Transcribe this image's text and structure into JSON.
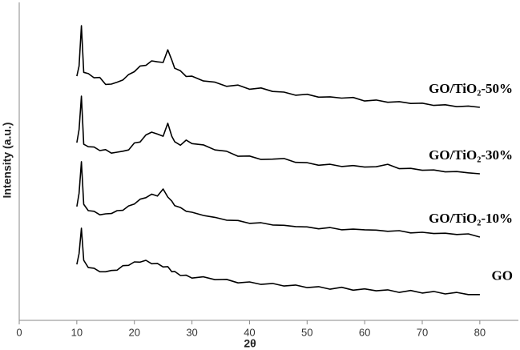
{
  "chart_data": {
    "type": "line",
    "xlabel": "2θ",
    "ylabel": "Intensity (a.u.)",
    "xlim": [
      0,
      86.7
    ],
    "ylim": [
      0,
      100
    ],
    "xticks": [
      0,
      10,
      20,
      30,
      40,
      50,
      60,
      70,
      80
    ],
    "x": [
      10,
      10.4,
      10.8,
      11.2,
      12,
      13,
      14,
      15,
      16,
      17,
      18,
      19,
      20,
      21,
      22,
      23,
      24,
      25,
      25.8,
      26.5,
      27,
      28,
      29,
      30,
      32,
      34,
      36,
      38,
      40,
      42,
      44,
      46,
      48,
      50,
      52,
      54,
      56,
      58,
      60,
      62,
      64,
      66,
      68,
      70,
      72,
      74,
      76,
      78,
      80
    ],
    "series": [
      {
        "name": "GO/TiO₂-50%",
        "color": "#000000",
        "values": [
          76.8,
          80,
          92.7,
          78,
          77.6,
          76.3,
          76.4,
          74.2,
          74.3,
          74.9,
          75.6,
          77.3,
          78.2,
          80,
          80.2,
          81.6,
          81.3,
          81.1,
          85.1,
          81.9,
          79.3,
          78.5,
          76.7,
          76.8,
          75.3,
          74.9,
          73.6,
          74,
          72.7,
          73.1,
          72,
          71.8,
          70.8,
          71.1,
          70.2,
          70.3,
          69.9,
          70.1,
          69,
          69.3,
          68.6,
          68.8,
          68.2,
          68.3,
          67.6,
          67.8,
          67.2,
          67.4,
          67
        ]
      },
      {
        "name": "GO/TiO₂-30%",
        "color": "#000000",
        "values": [
          55.9,
          60,
          70.5,
          55.4,
          54.6,
          54.5,
          53.4,
          53.7,
          52.6,
          52.9,
          53.2,
          53.6,
          55.8,
          56.1,
          58.3,
          59.2,
          58.6,
          57.9,
          62,
          57.9,
          56.2,
          55.1,
          56.7,
          55.6,
          55.2,
          53.6,
          53.2,
          51.6,
          51.7,
          50.6,
          50.7,
          50.9,
          49.7,
          49.6,
          48.8,
          49.1,
          48.4,
          48.7,
          48.2,
          48.3,
          49.1,
          47.7,
          47.8,
          47.2,
          47.3,
          46.7,
          46.8,
          46.4,
          46.1
        ]
      },
      {
        "name": "GO/TiO₂-10%",
        "color": "#000000",
        "values": [
          35.8,
          40,
          49.9,
          36.5,
          34.5,
          34.3,
          33.2,
          33.5,
          33.6,
          34.5,
          34.6,
          36,
          36.6,
          38.1,
          38.6,
          39.7,
          39.1,
          41.3,
          38.8,
          37.5,
          36.1,
          35.5,
          34.3,
          34,
          33,
          32.4,
          31.5,
          31.4,
          30.5,
          30.7,
          30,
          29.9,
          29.5,
          29.4,
          28.8,
          29.2,
          28.5,
          28.7,
          28.5,
          28.4,
          28,
          28.2,
          27.5,
          27.7,
          27.3,
          27.4,
          27,
          27.2,
          26.2
        ]
      },
      {
        "name": "GO",
        "color": "#000000",
        "values": [
          17.6,
          21,
          29,
          18.9,
          16.6,
          16.4,
          15.3,
          15.3,
          15.7,
          15.8,
          17.2,
          17.3,
          18.4,
          18.3,
          18.9,
          17.8,
          17.9,
          16.8,
          16.9,
          15.3,
          15.4,
          14.1,
          14.2,
          13.3,
          13.7,
          12.8,
          12.9,
          11.8,
          12.1,
          11.3,
          11.6,
          10.8,
          11.1,
          10.3,
          10.6,
          9.8,
          10.4,
          9.5,
          9.9,
          9.3,
          9.6,
          8.8,
          9.4,
          8.6,
          9.1,
          8.3,
          8.8,
          8.1,
          8.1
        ]
      }
    ]
  }
}
